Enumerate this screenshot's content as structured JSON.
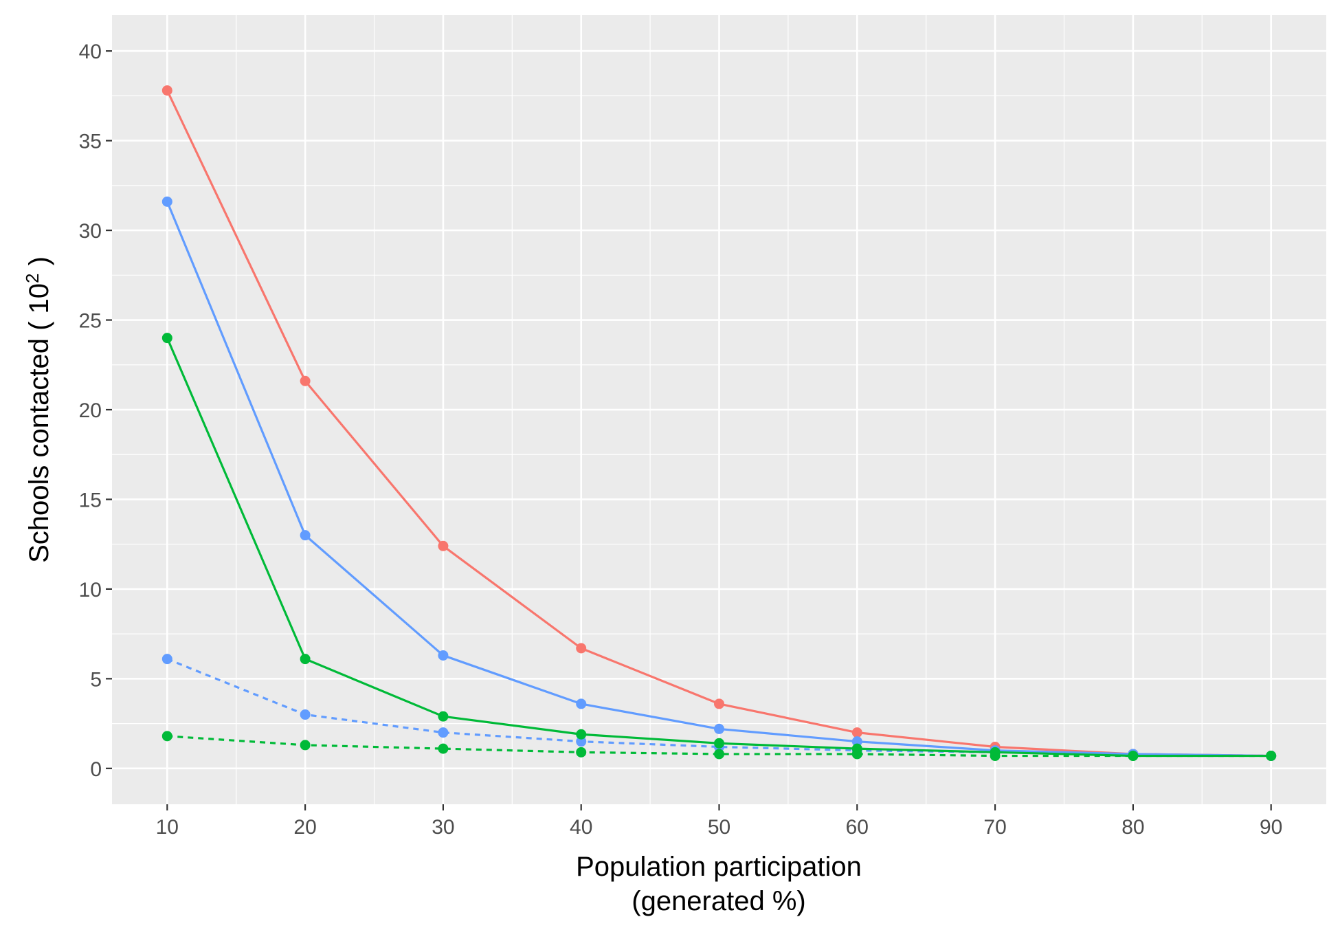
{
  "chart_data": {
    "type": "line",
    "xlabel_lines": [
      "Population participation",
      "(generated %)"
    ],
    "ylabel": {
      "prefix": "Schools contacted ( 10",
      "superscript": "2",
      "suffix": " )"
    },
    "xlim": [
      6,
      94
    ],
    "ylim": [
      -2,
      42
    ],
    "x_ticks": [
      10,
      20,
      30,
      40,
      50,
      60,
      70,
      80,
      90
    ],
    "y_ticks": [
      0,
      5,
      10,
      15,
      20,
      25,
      30,
      35,
      40
    ],
    "grid": true,
    "legend": "none",
    "x": [
      10,
      20,
      30,
      40,
      50,
      60,
      70,
      80,
      90
    ],
    "series": [
      {
        "color": "#F8766D",
        "linestyle": "solid",
        "values": [
          37.8,
          21.6,
          12.4,
          6.7,
          3.6,
          2.0,
          1.2,
          0.8,
          0.7
        ]
      },
      {
        "color": "#619CFF",
        "linestyle": "solid",
        "values": [
          31.6,
          13.0,
          6.3,
          3.6,
          2.2,
          1.5,
          1.0,
          0.8,
          0.7
        ]
      },
      {
        "color": "#00BA38",
        "linestyle": "solid",
        "values": [
          24.0,
          6.1,
          2.9,
          1.9,
          1.4,
          1.1,
          0.9,
          0.7,
          0.7
        ]
      },
      {
        "color": "#619CFF",
        "linestyle": "dashed",
        "values": [
          6.1,
          3.0,
          2.0,
          1.5,
          1.2,
          1.0,
          0.9,
          0.8,
          0.7
        ]
      },
      {
        "color": "#00BA38",
        "linestyle": "dashed",
        "values": [
          1.8,
          1.3,
          1.1,
          0.9,
          0.8,
          0.8,
          0.7,
          0.7,
          0.7
        ]
      }
    ]
  }
}
